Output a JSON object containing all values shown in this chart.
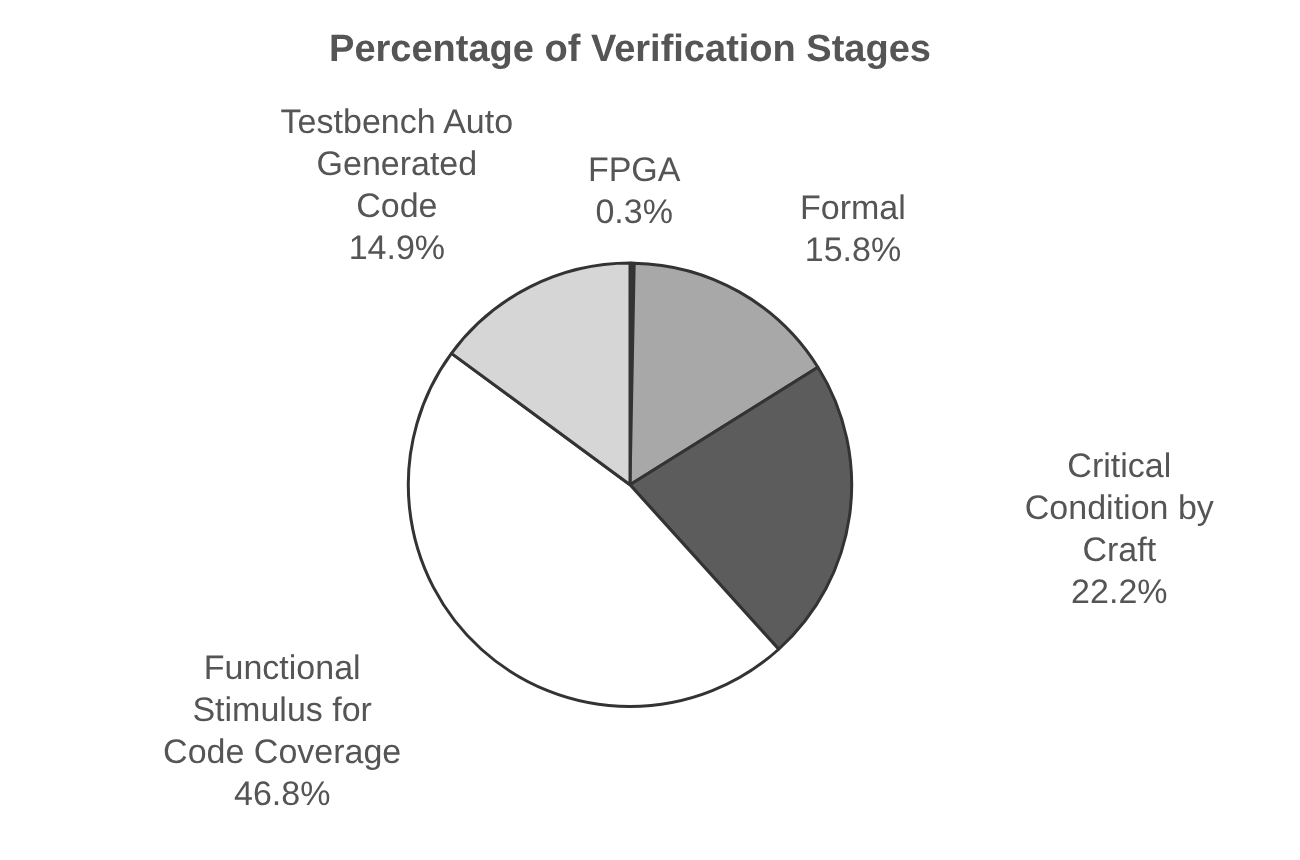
{
  "chart_data": {
    "type": "pie",
    "title": "Percentage of Verification Stages",
    "categories": [
      "FPGA",
      "Formal",
      "Critical Condition by Craft",
      "Functional Stimulus for Code Coverage",
      "Testbench Auto Generated Code"
    ],
    "values": [
      0.3,
      15.8,
      22.2,
      46.8,
      14.9
    ],
    "colors": [
      "#3c3c3c",
      "#a8a8a8",
      "#5c5c5c",
      "#ffffff",
      "#d6d6d6"
    ],
    "value_labels": [
      "0.3%",
      "15.8%",
      "22.2%",
      "46.8%",
      "14.9%"
    ]
  }
}
